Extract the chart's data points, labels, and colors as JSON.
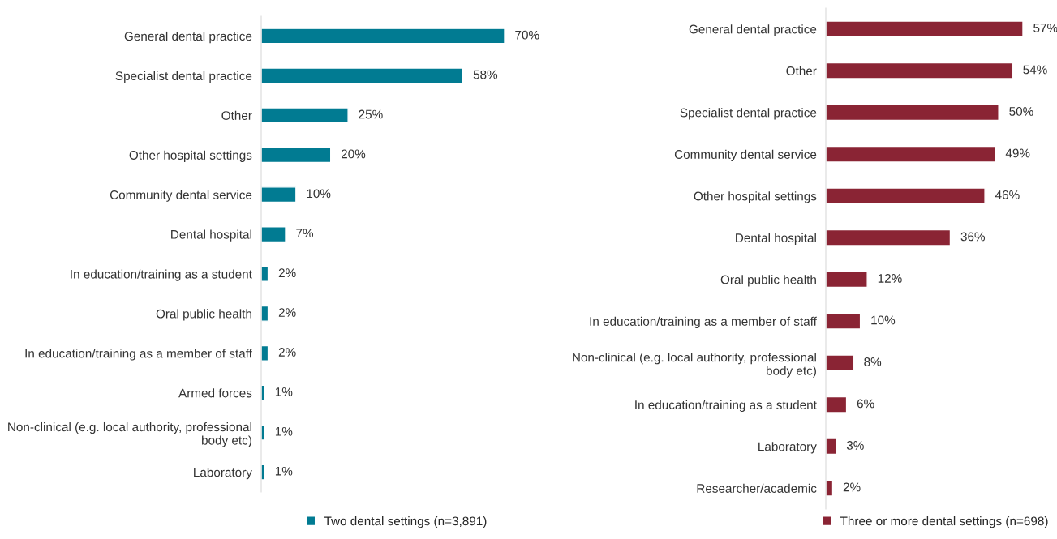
{
  "chart_data": [
    {
      "type": "bar",
      "orientation": "horizontal",
      "categories": [
        "General dental practice",
        "Specialist dental practice",
        "Other",
        "Other hospital settings",
        "Community dental service",
        "Dental hospital",
        "In education/training as a student",
        "Oral public health",
        "In education/training as a member of staff",
        "Armed forces",
        "Non-clinical (e.g. local authority, professional\nbody etc)",
        "Laboratory"
      ],
      "series": [
        {
          "name": "Two dental settings (n=3,891)",
          "color": "#017b92",
          "values": [
            70,
            58,
            25,
            20,
            10,
            7,
            2,
            2,
            2,
            1,
            1,
            1
          ],
          "value_labels": [
            "70%",
            "58%",
            "25%",
            "20%",
            "10%",
            "7%",
            "2%",
            "2%",
            "2%",
            "1%",
            "1%",
            "1%"
          ]
        }
      ],
      "legend": "bottom",
      "grid": false
    },
    {
      "type": "bar",
      "orientation": "horizontal",
      "categories": [
        "General dental practice",
        "Other",
        "Specialist dental practice",
        "Community dental service",
        "Other hospital settings",
        "Dental hospital",
        "Oral public health",
        "In education/training as a member of staff",
        "Non-clinical (e.g. local authority, professional\nbody etc)",
        "In education/training as a student",
        "Laboratory",
        "Researcher/academic"
      ],
      "series": [
        {
          "name": "Three or more dental settings (n=698)",
          "color": "#8a2434",
          "values": [
            57,
            54,
            50,
            49,
            46,
            36,
            12,
            10,
            8,
            6,
            3,
            2
          ],
          "value_labels": [
            "57%",
            "54%",
            "50%",
            "49%",
            "46%",
            "36%",
            "12%",
            "10%",
            "8%",
            "6%",
            "3%",
            "2%"
          ]
        }
      ],
      "legend": "bottom",
      "grid": false
    }
  ]
}
